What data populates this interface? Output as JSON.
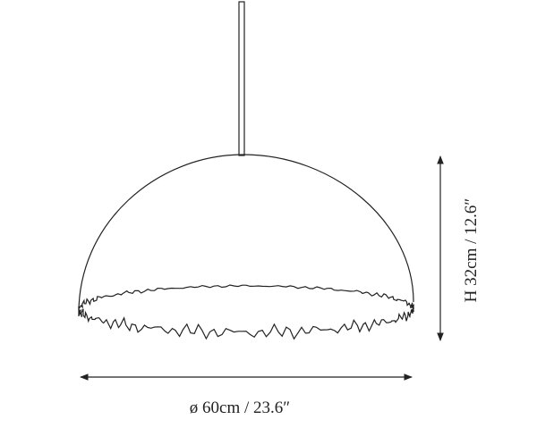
{
  "dimensions": {
    "width": "ø 60cm / 23.6″",
    "height": "H 32cm / 12.6″"
  }
}
